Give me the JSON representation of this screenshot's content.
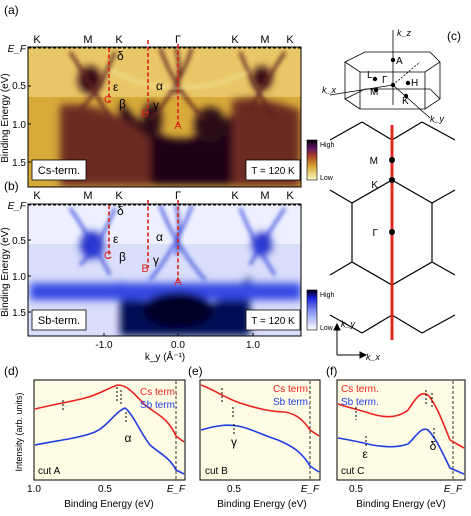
{
  "panels": {
    "a": {
      "label": "(a)",
      "kpoints": [
        "K",
        "M",
        "K",
        "Γ",
        "K",
        "M",
        "K"
      ],
      "ylabel": "Binding Energy (eV)",
      "yticks": [
        "E_F",
        "0.5",
        "1.0",
        "1.5"
      ],
      "term_label": "Cs-term.",
      "temp_label": "T = 120 K",
      "cuts": [
        "C",
        "B",
        "A"
      ],
      "bands": [
        "δ",
        "ε",
        "β",
        "γ",
        "α"
      ],
      "colorbar": {
        "high": "High",
        "low": "Low"
      }
    },
    "b": {
      "label": "(b)",
      "kpoints": [
        "K",
        "M",
        "K",
        "Γ",
        "K",
        "M",
        "K"
      ],
      "ylabel": "Binding Energy (eV)",
      "yticks": [
        "E_F",
        "0.5",
        "1.0",
        "1.5"
      ],
      "xticks": [
        "-1.0",
        "0.0",
        "1.0"
      ],
      "xlabel": "k_y (Å⁻¹)",
      "term_label": "Sb-term.",
      "temp_label": "T = 120 K",
      "cuts": [
        "C",
        "B",
        "A"
      ],
      "bands": [
        "δ",
        "ε",
        "β",
        "γ",
        "α"
      ],
      "colorbar": {
        "high": "High",
        "low": "Low"
      }
    },
    "c": {
      "label": "(c)",
      "bz3d": [
        "k_z",
        "A",
        "L",
        "H",
        "Γ",
        "k_x",
        "M",
        "K",
        "k_y"
      ],
      "bz2d": [
        "M",
        "K",
        "Γ"
      ],
      "axes": [
        "k_y",
        "k_x"
      ]
    },
    "d": {
      "label": "(d)",
      "ylabel": "Intensity (arb. units)",
      "xticks": [
        "1.0",
        "0.5",
        "E_F"
      ],
      "xlabel": "Binding Energy (eV)",
      "legend": [
        "Cs term.",
        "Sb term."
      ],
      "cut": "cut A",
      "band": "α"
    },
    "e": {
      "label": "(e)",
      "xticks": [
        "0.5",
        "E_F"
      ],
      "xlabel": "Binding Energy (eV)",
      "legend": [
        "Cs term.",
        "Sb term."
      ],
      "cut": "cut B",
      "band": "γ"
    },
    "f": {
      "label": "(f)",
      "xticks": [
        "0.5",
        "E_F"
      ],
      "xlabel": "Binding Energy (eV)",
      "legend": [
        "Cs term.",
        "Sb term."
      ],
      "cut": "cut C",
      "bands": [
        "ε",
        "δ"
      ]
    }
  },
  "colors": {
    "cs": "#e8231f",
    "sb": "#1f3ee0",
    "cut": "#d8231a",
    "bz_line": "#e0261d"
  }
}
